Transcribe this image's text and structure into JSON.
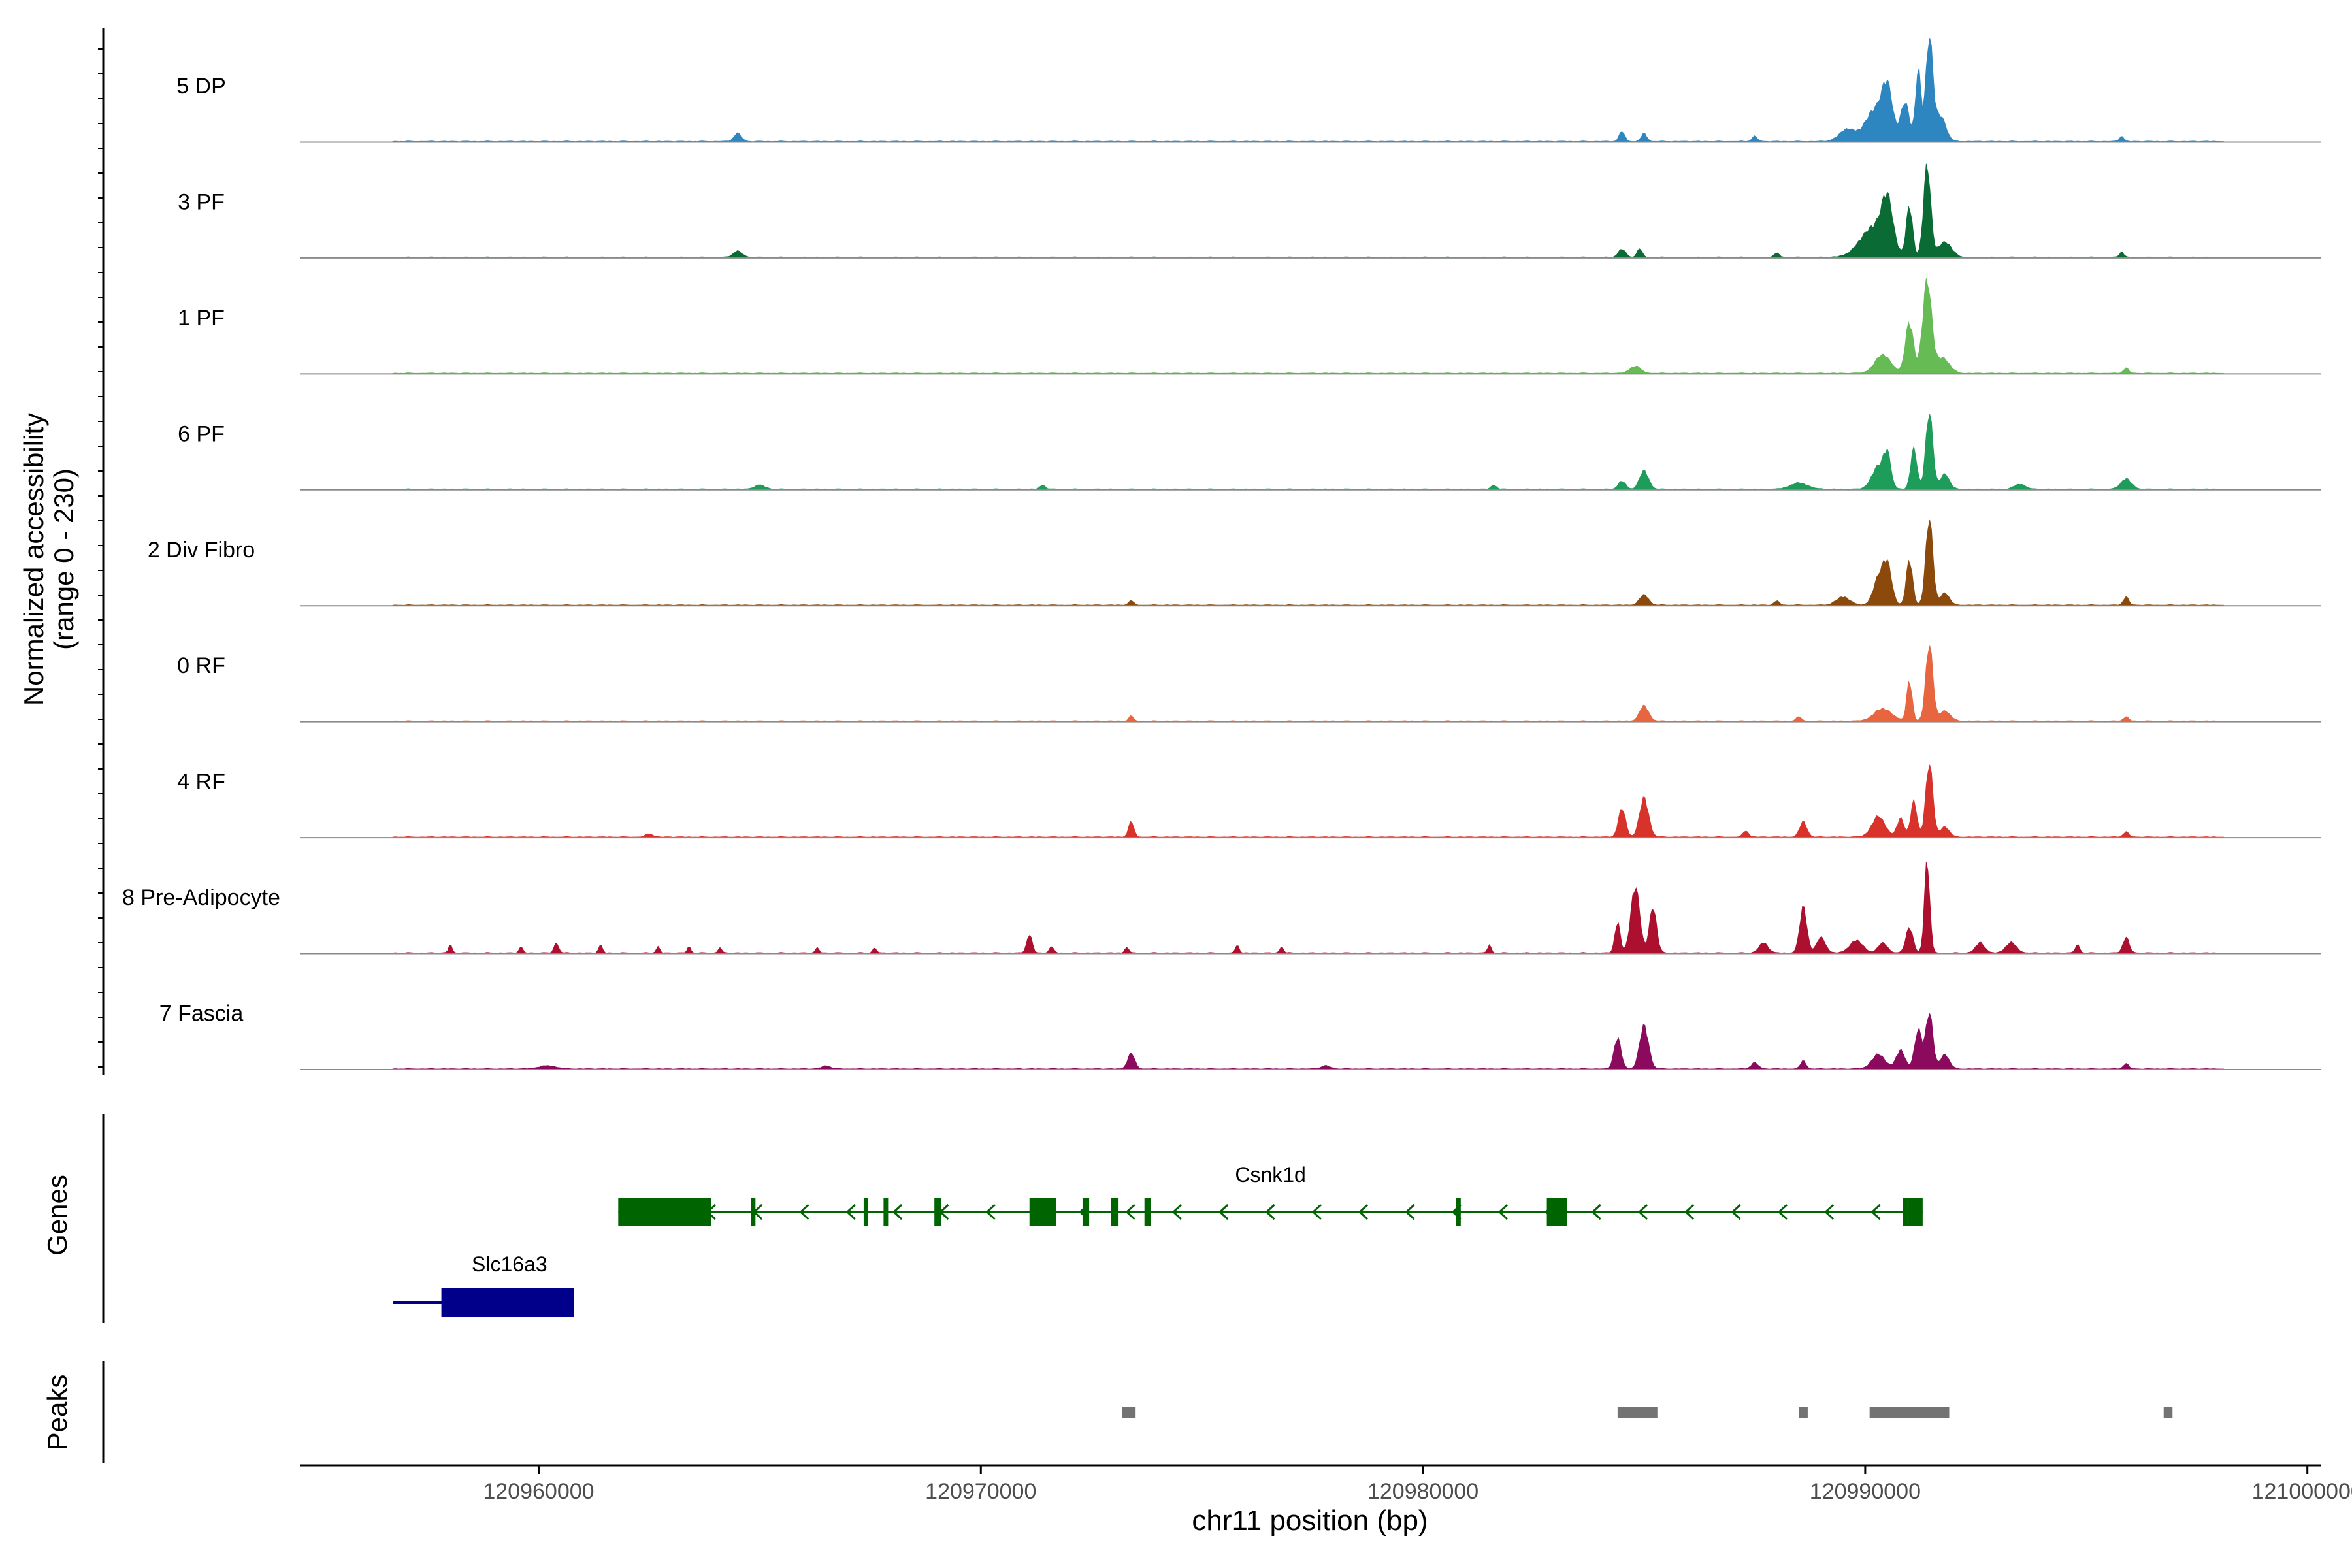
{
  "chart_data": {
    "type": "area",
    "title": "",
    "y_axis_label_line1": "Normalized accessibility",
    "y_axis_label_line2": "(range 0 - 230)",
    "y_range": [
      0,
      230
    ],
    "x_axis_label": "chr11 position (bp)",
    "x_range": [
      120954600,
      121000300
    ],
    "x_ticks": [
      120960000,
      120970000,
      120980000,
      120990000,
      121000000
    ],
    "x_tick_labels": [
      "120960000",
      "120970000",
      "120980000",
      "120990000",
      "121000000"
    ],
    "track_start": 120956700,
    "track_end": 120998100,
    "series": [
      {
        "name": "5 DP",
        "color": "#2E86C1",
        "peaks": [
          [
            120964500,
            8,
            80
          ],
          [
            120984500,
            10,
            60
          ],
          [
            120985000,
            8,
            60
          ],
          [
            120987500,
            5,
            60
          ],
          [
            120989600,
            12,
            180
          ],
          [
            120990200,
            30,
            200
          ],
          [
            120990500,
            50,
            120
          ],
          [
            120990900,
            38,
            100
          ],
          [
            120991200,
            70,
            60
          ],
          [
            120991450,
            100,
            80
          ],
          [
            120991700,
            25,
            120
          ],
          [
            120995800,
            5,
            50
          ]
        ]
      },
      {
        "name": "3 PF",
        "color": "#0B6B34",
        "peaks": [
          [
            120964500,
            6,
            100
          ],
          [
            120984500,
            8,
            80
          ],
          [
            120984900,
            8,
            60
          ],
          [
            120988000,
            4,
            60
          ],
          [
            120990200,
            30,
            300
          ],
          [
            120990500,
            45,
            120
          ],
          [
            120991000,
            50,
            70
          ],
          [
            120991400,
            90,
            80
          ],
          [
            120991800,
            15,
            150
          ],
          [
            120995800,
            5,
            50
          ]
        ]
      },
      {
        "name": "1 PF",
        "color": "#66BB55",
        "peaks": [
          [
            120984800,
            7,
            120
          ],
          [
            120990400,
            18,
            180
          ],
          [
            120991000,
            50,
            90
          ],
          [
            120991400,
            90,
            100
          ],
          [
            120991750,
            15,
            150
          ],
          [
            120995900,
            5,
            60
          ]
        ]
      },
      {
        "name": "6 PF",
        "color": "#1E9D5A",
        "peaks": [
          [
            120965000,
            4,
            120
          ],
          [
            120971400,
            4,
            60
          ],
          [
            120981600,
            4,
            60
          ],
          [
            120984500,
            8,
            80
          ],
          [
            120985000,
            18,
            100
          ],
          [
            120988500,
            6,
            200
          ],
          [
            120990300,
            22,
            150
          ],
          [
            120990500,
            30,
            80
          ],
          [
            120991100,
            40,
            70
          ],
          [
            120991450,
            75,
            80
          ],
          [
            120991800,
            15,
            100
          ],
          [
            120993500,
            5,
            120
          ],
          [
            120995900,
            10,
            120
          ]
        ]
      },
      {
        "name": "2 Div Fibro",
        "color": "#8B4A0B",
        "peaks": [
          [
            120973400,
            4,
            60
          ],
          [
            120985000,
            10,
            100
          ],
          [
            120988000,
            4,
            60
          ],
          [
            120989500,
            8,
            150
          ],
          [
            120990300,
            25,
            120
          ],
          [
            120990500,
            38,
            100
          ],
          [
            120991000,
            45,
            70
          ],
          [
            120991450,
            85,
            80
          ],
          [
            120991800,
            12,
            100
          ],
          [
            120995900,
            8,
            60
          ]
        ]
      },
      {
        "name": "0 RF",
        "color": "#E8663F",
        "peaks": [
          [
            120973400,
            5,
            50
          ],
          [
            120985000,
            15,
            100
          ],
          [
            120988500,
            4,
            60
          ],
          [
            120990400,
            12,
            200
          ],
          [
            120991000,
            40,
            60
          ],
          [
            120991450,
            75,
            80
          ],
          [
            120991800,
            10,
            120
          ],
          [
            120995900,
            4,
            60
          ]
        ]
      },
      {
        "name": "4 RF",
        "color": "#D7332A",
        "peaks": [
          [
            120962500,
            3,
            80
          ],
          [
            120973400,
            15,
            60
          ],
          [
            120984500,
            28,
            80
          ],
          [
            120985000,
            38,
            100
          ],
          [
            120987300,
            6,
            60
          ],
          [
            120988600,
            15,
            80
          ],
          [
            120990300,
            20,
            150
          ],
          [
            120990800,
            18,
            80
          ],
          [
            120991100,
            35,
            70
          ],
          [
            120991450,
            72,
            80
          ],
          [
            120991800,
            10,
            100
          ],
          [
            120995900,
            5,
            60
          ]
        ]
      },
      {
        "name": "8 Pre-Adipocyte",
        "color": "#AD0F2E",
        "peaks": [
          [
            120958000,
            8,
            40
          ],
          [
            120959600,
            6,
            40
          ],
          [
            120960400,
            10,
            50
          ],
          [
            120961400,
            8,
            40
          ],
          [
            120962700,
            6,
            40
          ],
          [
            120963400,
            6,
            40
          ],
          [
            120964100,
            5,
            40
          ],
          [
            120966300,
            5,
            40
          ],
          [
            120967600,
            5,
            40
          ],
          [
            120971100,
            18,
            60
          ],
          [
            120971600,
            6,
            50
          ],
          [
            120973300,
            6,
            40
          ],
          [
            120975800,
            8,
            40
          ],
          [
            120976800,
            6,
            40
          ],
          [
            120981500,
            8,
            40
          ],
          [
            120984400,
            30,
            60
          ],
          [
            120984800,
            65,
            100
          ],
          [
            120985200,
            45,
            80
          ],
          [
            120987700,
            10,
            100
          ],
          [
            120988600,
            45,
            80
          ],
          [
            120989000,
            15,
            100
          ],
          [
            120989800,
            12,
            150
          ],
          [
            120990400,
            10,
            100
          ],
          [
            120991000,
            25,
            80
          ],
          [
            120991400,
            90,
            60
          ],
          [
            120992600,
            10,
            100
          ],
          [
            120993300,
            10,
            120
          ],
          [
            120994800,
            8,
            50
          ],
          [
            120995900,
            15,
            70
          ]
        ]
      },
      {
        "name": "7 Fascia",
        "color": "#8B0A5E",
        "peaks": [
          [
            120960200,
            3,
            200
          ],
          [
            120966500,
            3,
            100
          ],
          [
            120973400,
            15,
            80
          ],
          [
            120977800,
            3,
            100
          ],
          [
            120984400,
            30,
            80
          ],
          [
            120985000,
            42,
            100
          ],
          [
            120987500,
            6,
            80
          ],
          [
            120988600,
            8,
            60
          ],
          [
            120990300,
            14,
            150
          ],
          [
            120990800,
            18,
            100
          ],
          [
            120991200,
            38,
            80
          ],
          [
            120991450,
            55,
            80
          ],
          [
            120991800,
            14,
            100
          ],
          [
            120995900,
            5,
            60
          ]
        ]
      }
    ],
    "genes_label": "Genes",
    "genes": [
      {
        "name": "Csnk1d",
        "strand": "-",
        "color": "#006400",
        "start": 120961800,
        "end": 120991300,
        "exons": [
          [
            120961800,
            120963900
          ],
          [
            120964800,
            120964850
          ],
          [
            120967350,
            120967450
          ],
          [
            120967800,
            120967900
          ],
          [
            120968950,
            120969100
          ],
          [
            120971100,
            120971700
          ],
          [
            120972300,
            120972450
          ],
          [
            120972950,
            120973100
          ],
          [
            120973700,
            120973850
          ],
          [
            120980750,
            120980800
          ],
          [
            120982800,
            120983250
          ],
          [
            120990850,
            120990950
          ],
          [
            120990950,
            120991300
          ]
        ]
      },
      {
        "name": "Slc16a3",
        "strand": "+",
        "color": "#00008B",
        "start": 120956700,
        "end": 120960800,
        "exons": [
          [
            120957800,
            120960800
          ]
        ]
      }
    ],
    "peaks_label": "Peaks",
    "peak_regions": [
      [
        120973200,
        120973500
      ],
      [
        120984400,
        120985300
      ],
      [
        120988500,
        120988700
      ],
      [
        120990100,
        120991900
      ],
      [
        120996750,
        120996950
      ]
    ]
  }
}
